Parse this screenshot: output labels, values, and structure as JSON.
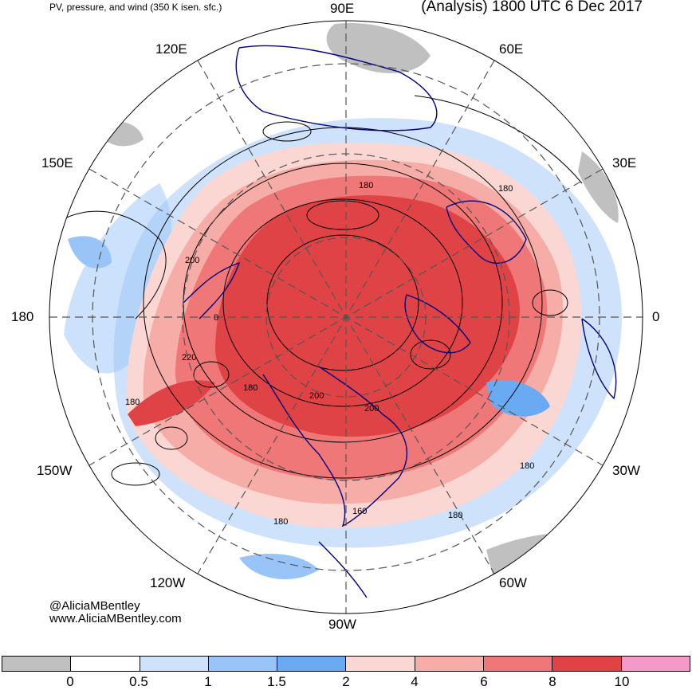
{
  "header": {
    "title_left": "PV, pressure, and wind (350 K isen. sfc.)",
    "title_right": "(Analysis) 1800 UTC 6 Dec 2017"
  },
  "longitude_labels": {
    "lon_90E": "90E",
    "lon_60E": "60E",
    "lon_30E": "30E",
    "lon_0": "0",
    "lon_30W": "30W",
    "lon_60W": "60W",
    "lon_90W": "90W",
    "lon_120W": "120W",
    "lon_150W": "150W",
    "lon_180": "180",
    "lon_150E": "150E",
    "lon_120E": "120E"
  },
  "contour_labels": [
    "180",
    "180",
    "200",
    "220",
    "180",
    "200",
    "200",
    "180",
    "160",
    "180",
    "180",
    "180",
    "0"
  ],
  "credits": {
    "handle": "@AliciaMBentley",
    "website": "www.AliciaMBentley.com"
  },
  "colorbar": {
    "colors": [
      "#c0c0c0",
      "#ffffff",
      "#cfe2fb",
      "#99c4f8",
      "#6aaaf2",
      "#fad7d2",
      "#f6aca7",
      "#f07777",
      "#e04345",
      "#f59ac7"
    ],
    "tick_labels": [
      "0",
      "0.5",
      "1",
      "1.5",
      "2",
      "4",
      "6",
      "8",
      "10"
    ]
  },
  "map_colors": {
    "ocean_white": "#ffffff",
    "pv_high": "#e04345",
    "pv_mid": "#f07777",
    "pv_low": "#f6aca7",
    "pv_lightpink": "#fad7d2",
    "blue_light": "#cfe2fb",
    "blue_mid": "#99c4f8",
    "blue_dark": "#6aaaf2",
    "gray": "#c0c0c0",
    "coast": "#000080",
    "contour": "#000000",
    "grid": "#555555"
  }
}
